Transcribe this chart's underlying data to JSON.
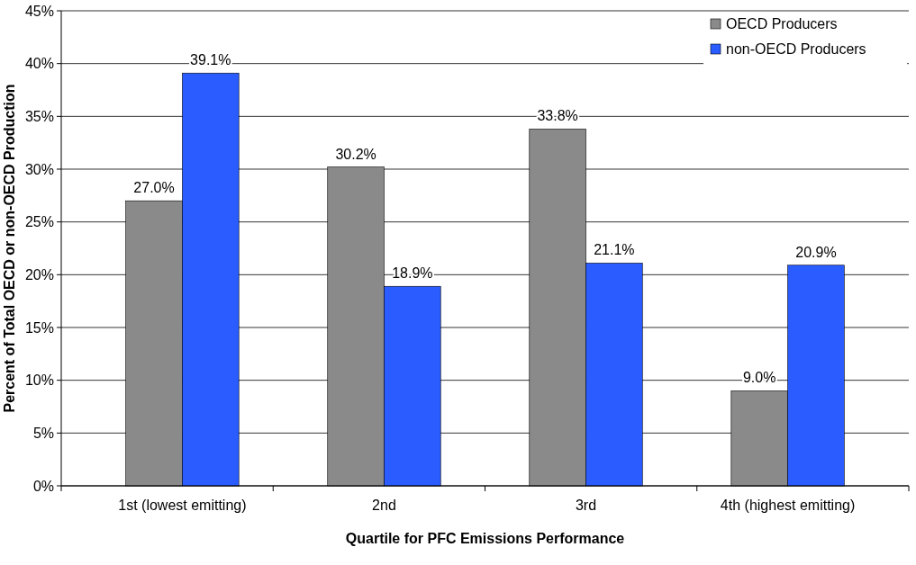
{
  "chart_data": {
    "type": "bar",
    "xlabel": "Quartile for PFC Emissions Performance",
    "ylabel": "Percent of Total OECD or non-OECD Production",
    "categories": [
      "1st (lowest emitting)",
      "2nd",
      "3rd",
      "4th (highest emitting)"
    ],
    "series": [
      {
        "name": "OECD Producers",
        "color": "#8a8a8a",
        "values": [
          27.0,
          30.2,
          33.8,
          9.0
        ],
        "value_labels": [
          "27.0%",
          "30.2%",
          "33.8%",
          "9.0%"
        ]
      },
      {
        "name": "non-OECD Producers",
        "color": "#2a5cff",
        "values": [
          39.1,
          18.9,
          21.1,
          20.9
        ],
        "value_labels": [
          "39.1%",
          "18.9%",
          "21.1%",
          "20.9%"
        ]
      }
    ],
    "ylim": [
      0,
      45
    ],
    "yticks": [
      {
        "value": 0,
        "label": "0%"
      },
      {
        "value": 5,
        "label": "5%"
      },
      {
        "value": 10,
        "label": "10%"
      },
      {
        "value": 15,
        "label": "15%"
      },
      {
        "value": 20,
        "label": "20%"
      },
      {
        "value": 25,
        "label": "25%"
      },
      {
        "value": 30,
        "label": "30%"
      },
      {
        "value": 35,
        "label": "35%"
      },
      {
        "value": 40,
        "label": "40%"
      },
      {
        "value": 45,
        "label": "45%"
      }
    ],
    "grid": "y",
    "legend": "top right"
  }
}
